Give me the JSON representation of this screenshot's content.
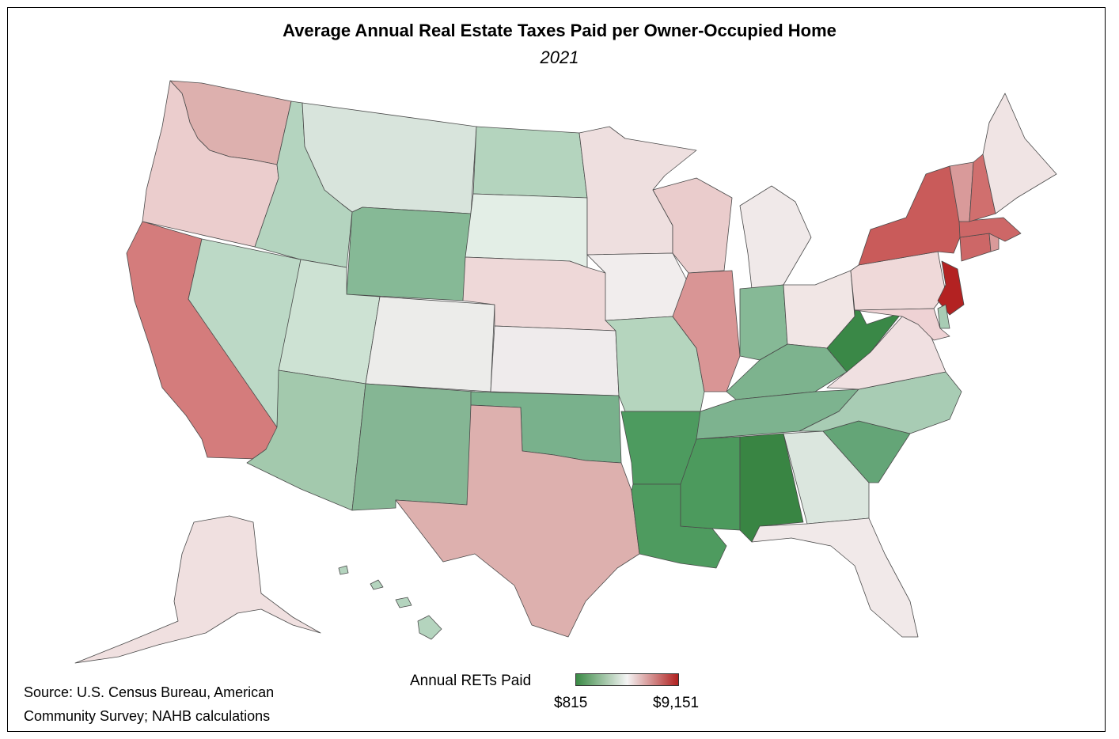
{
  "title": "Average Annual Real Estate Taxes Paid per Owner-Occupied Home",
  "subtitle": "2021",
  "source": "Source: U.S. Census Bureau, American Community Survey; NAHB calculations",
  "legend": {
    "title": "Annual RETs Paid",
    "min_label": "$815",
    "max_label": "$9,151",
    "min_value": 815,
    "max_value": 9151,
    "color_low": "#3a8a45",
    "color_mid": "#f4f4f4",
    "color_high": "#b0201f"
  },
  "state_colors": {
    "WA": "#ddb0ae",
    "OR": "#ebcdcd",
    "CA": "#d47c7c",
    "NV": "#bcd9c6",
    "ID": "#b4d4bf",
    "MT": "#d8e4dc",
    "WY": "#86b996",
    "UT": "#cde2d3",
    "AZ": "#a3c9ad",
    "CO": "#ececea",
    "NM": "#85b694",
    "ND": "#b4d4be",
    "SD": "#e3eee6",
    "NE": "#eed8d8",
    "KS": "#efebec",
    "OK": "#79b18c",
    "TX": "#ddb0ae",
    "MN": "#eedfdf",
    "IA": "#f1eded",
    "MO": "#b5d5be",
    "AR": "#4d9b5f",
    "LA": "#4e9b5f",
    "WI": "#eacccc",
    "IL": "#d99595",
    "MI": "#f0e9e9",
    "IN": "#86b996",
    "OH": "#f1e6e5",
    "KY": "#7db38e",
    "TN": "#7db38f",
    "MS": "#4c9a5d",
    "AL": "#398543",
    "GA": "#dbe6de",
    "FL": "#f1e9e9",
    "SC": "#64a577",
    "NC": "#a8ccb4",
    "VA": "#f0e0e1",
    "WV": "#3a8847",
    "PA": "#efd9d9",
    "NY": "#c95b5a",
    "NJ": "#b32222",
    "DE": "#a8ccb4",
    "MD": "#eed2d4",
    "CT": "#cd6767",
    "RI": "#d99a9a",
    "MA": "#cd6767",
    "VT": "#d99a9a",
    "NH": "#d06f6e",
    "ME": "#f0e4e4",
    "AK": "#f0e0e0",
    "HI": "#b4d4be"
  }
}
